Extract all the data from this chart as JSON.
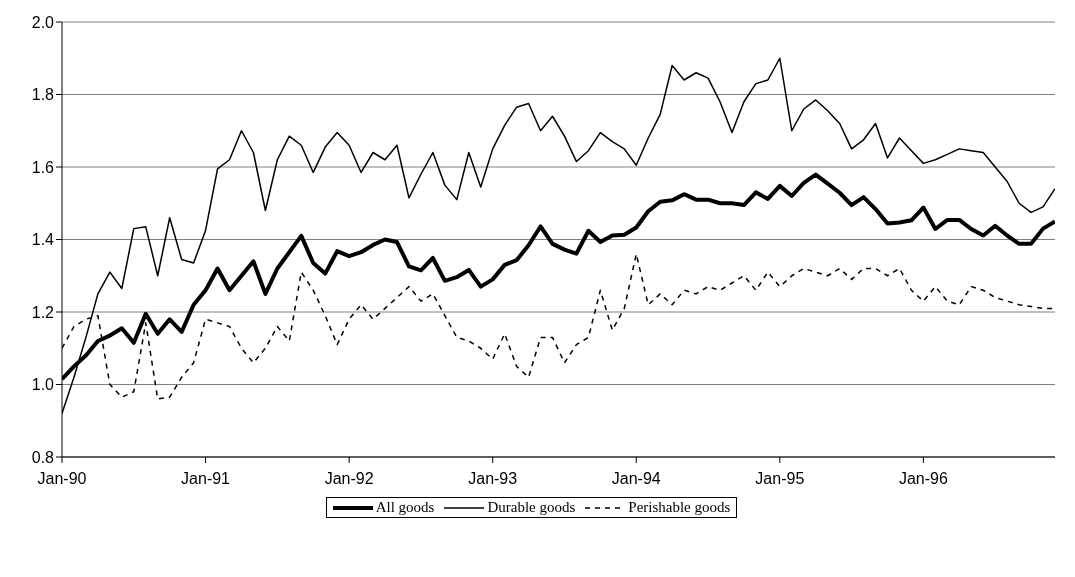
{
  "chart_data": {
    "type": "line",
    "x": [
      "1990-01",
      "1990-02",
      "1990-03",
      "1990-04",
      "1990-05",
      "1990-06",
      "1990-07",
      "1990-08",
      "1990-09",
      "1990-10",
      "1990-11",
      "1990-12",
      "1991-01",
      "1991-02",
      "1991-03",
      "1991-04",
      "1991-05",
      "1991-06",
      "1991-07",
      "1991-08",
      "1991-09",
      "1991-10",
      "1991-11",
      "1991-12",
      "1992-01",
      "1992-02",
      "1992-03",
      "1992-04",
      "1992-05",
      "1992-06",
      "1992-07",
      "1992-08",
      "1992-09",
      "1992-10",
      "1992-11",
      "1992-12",
      "1993-01",
      "1993-02",
      "1993-03",
      "1993-04",
      "1993-05",
      "1993-06",
      "1993-07",
      "1993-08",
      "1993-09",
      "1993-10",
      "1993-11",
      "1993-12",
      "1994-01",
      "1994-02",
      "1994-03",
      "1994-04",
      "1994-05",
      "1994-06",
      "1994-07",
      "1994-08",
      "1994-09",
      "1994-10",
      "1994-11",
      "1994-12",
      "1995-01",
      "1995-02",
      "1995-03",
      "1995-04",
      "1995-05",
      "1995-06",
      "1995-07",
      "1995-08",
      "1995-09",
      "1995-10",
      "1995-11",
      "1995-12",
      "1996-01",
      "1996-02",
      "1996-03",
      "1996-04",
      "1996-05",
      "1996-06",
      "1996-07",
      "1996-08",
      "1996-09",
      "1996-10",
      "1996-11",
      "1996-12"
    ],
    "series": [
      {
        "name": "All goods",
        "color": "#000000",
        "line_style": "solid",
        "values": [
          1.015,
          1.05,
          1.08,
          1.12,
          1.135,
          1.155,
          1.115,
          1.195,
          1.14,
          1.18,
          1.145,
          1.22,
          1.26,
          1.32,
          1.26,
          1.3,
          1.34,
          1.25,
          1.32,
          1.365,
          1.41,
          1.335,
          1.306,
          1.368,
          1.354,
          1.365,
          1.385,
          1.4,
          1.393,
          1.326,
          1.315,
          1.349,
          1.286,
          1.296,
          1.316,
          1.27,
          1.29,
          1.33,
          1.343,
          1.384,
          1.436,
          1.388,
          1.372,
          1.361,
          1.424,
          1.393,
          1.411,
          1.413,
          1.433,
          1.478,
          1.504,
          1.508,
          1.525,
          1.51,
          1.51,
          1.5,
          1.5,
          1.495,
          1.53,
          1.512,
          1.548,
          1.52,
          1.556,
          1.579,
          1.554,
          1.529,
          1.495,
          1.517,
          1.484,
          1.444,
          1.447,
          1.453,
          1.488,
          1.429,
          1.454,
          1.454,
          1.429,
          1.411,
          1.438,
          1.411,
          1.388,
          1.388,
          1.43,
          1.45
        ]
      },
      {
        "name": "Durable goods",
        "color": "#000000",
        "line_style": "solid",
        "values": [
          0.92,
          1.02,
          1.13,
          1.25,
          1.31,
          1.265,
          1.43,
          1.435,
          1.3,
          1.46,
          1.345,
          1.335,
          1.425,
          1.595,
          1.62,
          1.7,
          1.64,
          1.48,
          1.62,
          1.685,
          1.66,
          1.585,
          1.655,
          1.695,
          1.66,
          1.585,
          1.64,
          1.62,
          1.66,
          1.515,
          1.58,
          1.64,
          1.55,
          1.51,
          1.64,
          1.545,
          1.65,
          1.715,
          1.765,
          1.775,
          1.7,
          1.74,
          1.685,
          1.615,
          1.645,
          1.695,
          1.67,
          1.65,
          1.605,
          1.68,
          1.745,
          1.88,
          1.84,
          1.86,
          1.845,
          1.78,
          1.695,
          1.78,
          1.83,
          1.84,
          1.9,
          1.7,
          1.76,
          1.785,
          1.755,
          1.72,
          1.65,
          1.675,
          1.72,
          1.625,
          1.68,
          1.645,
          1.61,
          1.62,
          1.635,
          1.65,
          1.645,
          1.64,
          1.6,
          1.56,
          1.5,
          1.475,
          1.49,
          1.54
        ]
      },
      {
        "name": "Perishable goods",
        "color": "#000000",
        "line_style": "dashed",
        "values": [
          1.1,
          1.16,
          1.18,
          1.19,
          1.0,
          0.965,
          0.98,
          1.17,
          0.96,
          0.965,
          1.02,
          1.06,
          1.18,
          1.17,
          1.16,
          1.1,
          1.06,
          1.1,
          1.16,
          1.12,
          1.31,
          1.26,
          1.19,
          1.11,
          1.18,
          1.22,
          1.18,
          1.21,
          1.24,
          1.27,
          1.23,
          1.25,
          1.19,
          1.13,
          1.12,
          1.1,
          1.07,
          1.14,
          1.05,
          1.02,
          1.13,
          1.13,
          1.06,
          1.11,
          1.13,
          1.26,
          1.15,
          1.21,
          1.36,
          1.22,
          1.25,
          1.22,
          1.26,
          1.25,
          1.27,
          1.26,
          1.28,
          1.3,
          1.26,
          1.31,
          1.27,
          1.3,
          1.32,
          1.31,
          1.3,
          1.32,
          1.29,
          1.32,
          1.32,
          1.3,
          1.32,
          1.26,
          1.23,
          1.27,
          1.23,
          1.22,
          1.27,
          1.26,
          1.24,
          1.23,
          1.22,
          1.215,
          1.21,
          1.21
        ]
      }
    ],
    "xlim": [
      "1990-01",
      "1996-12"
    ],
    "xticks": [
      {
        "value": "1990-01",
        "label": "Jan-90"
      },
      {
        "value": "1991-01",
        "label": "Jan-91"
      },
      {
        "value": "1992-01",
        "label": "Jan-92"
      },
      {
        "value": "1993-01",
        "label": "Jan-93"
      },
      {
        "value": "1994-01",
        "label": "Jan-94"
      },
      {
        "value": "1995-01",
        "label": "Jan-95"
      },
      {
        "value": "1996-01",
        "label": "Jan-96"
      }
    ],
    "ylim": [
      0.8,
      2.0
    ],
    "yticks": [
      0.8,
      {
        "value": 1.0,
        "label": "1.0"
      },
      1.2,
      1.4,
      1.6,
      1.8,
      {
        "value": 2.0,
        "label": "2.0"
      }
    ],
    "grid": "y",
    "legend": "bottom",
    "marker": "none"
  }
}
